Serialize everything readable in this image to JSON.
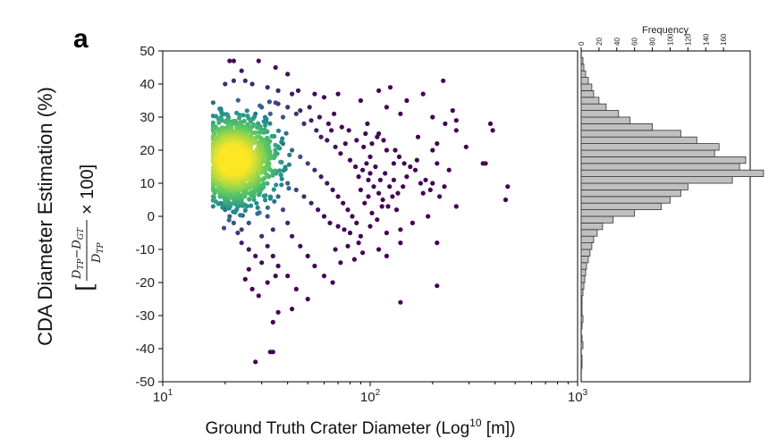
{
  "panel_label": "a",
  "chart_data": [
    {
      "type": "scatter",
      "title": "",
      "xlabel": "Ground Truth Crater Diameter (Log",
      "xlabel_sup": "10",
      "xlabel_tail": " [m])",
      "ylabel": "CDA Diameter Estimation (%)",
      "ylabel_formula": {
        "open": "[",
        "num": "D",
        "num_sub1": "TP",
        "num_minus": "−D",
        "num_sub2": "GT",
        "den": "D",
        "den_sub": "TP",
        "times": "× 100]"
      },
      "x_scale": "log",
      "xlim": [
        10,
        1000
      ],
      "ylim": [
        -50,
        50
      ],
      "x_ticks": [
        {
          "base": "10",
          "exp": "1",
          "value": 10
        },
        {
          "base": "10",
          "exp": "2",
          "value": 100
        },
        {
          "base": "10",
          "exp": "3",
          "value": 1000
        }
      ],
      "y_ticks": [
        50,
        40,
        30,
        20,
        10,
        0,
        -10,
        -20,
        -30,
        -40,
        -50
      ],
      "colormap": [
        "#440154",
        "#3b528b",
        "#21918c",
        "#5ec962",
        "#fde725"
      ],
      "density_center": {
        "x": 22,
        "y": 17
      },
      "points": [
        [
          21,
          47
        ],
        [
          22,
          47
        ],
        [
          29,
          47
        ],
        [
          35,
          45
        ],
        [
          24,
          44
        ],
        [
          40,
          43
        ],
        [
          22,
          41
        ],
        [
          25,
          41
        ],
        [
          27,
          40
        ],
        [
          20,
          40
        ],
        [
          32,
          39
        ],
        [
          36,
          38
        ],
        [
          42,
          37
        ],
        [
          45,
          38
        ],
        [
          54,
          37
        ],
        [
          60,
          36
        ],
        [
          70,
          37
        ],
        [
          90,
          35
        ],
        [
          110,
          38
        ],
        [
          125,
          39
        ],
        [
          150,
          35
        ],
        [
          180,
          37
        ],
        [
          225,
          41
        ],
        [
          120,
          33
        ],
        [
          140,
          31
        ],
        [
          200,
          30
        ],
        [
          250,
          32
        ],
        [
          260,
          29
        ],
        [
          230,
          28
        ],
        [
          380,
          28
        ],
        [
          390,
          26
        ],
        [
          260,
          26
        ],
        [
          290,
          21
        ],
        [
          200,
          20
        ],
        [
          210,
          22
        ],
        [
          170,
          24
        ],
        [
          110,
          25
        ],
        [
          95,
          25
        ],
        [
          100,
          18
        ],
        [
          120,
          20
        ],
        [
          130,
          16
        ],
        [
          150,
          12
        ],
        [
          165,
          14
        ],
        [
          175,
          10
        ],
        [
          180,
          7
        ],
        [
          200,
          10
        ],
        [
          210,
          16
        ],
        [
          240,
          14
        ],
        [
          350,
          16
        ],
        [
          360,
          16
        ],
        [
          460,
          9
        ],
        [
          450,
          5
        ],
        [
          260,
          3
        ],
        [
          190,
          0
        ],
        [
          160,
          -2
        ],
        [
          140,
          -4
        ],
        [
          120,
          -5
        ],
        [
          100,
          -3
        ],
        [
          90,
          -6
        ],
        [
          80,
          -5
        ],
        [
          75,
          -4
        ],
        [
          70,
          -3
        ],
        [
          110,
          -10
        ],
        [
          120,
          -12
        ],
        [
          140,
          -8
        ],
        [
          210,
          -8
        ],
        [
          210,
          -21
        ],
        [
          140,
          -26
        ],
        [
          50,
          -25
        ],
        [
          44,
          -22
        ],
        [
          40,
          -18
        ],
        [
          35,
          -18
        ],
        [
          32,
          -20
        ],
        [
          30,
          -14
        ],
        [
          28,
          -12
        ],
        [
          26,
          -10
        ],
        [
          24,
          -8
        ],
        [
          23,
          -5
        ],
        [
          22,
          -2
        ],
        [
          21,
          0
        ],
        [
          20,
          2
        ],
        [
          19,
          4
        ],
        [
          29,
          -24
        ],
        [
          36,
          -29
        ],
        [
          34,
          -32
        ],
        [
          42,
          -28
        ],
        [
          28,
          -44
        ],
        [
          33,
          -41
        ],
        [
          34,
          -41
        ],
        [
          28,
          31
        ],
        [
          30,
          33
        ],
        [
          33,
          31
        ],
        [
          38,
          30
        ],
        [
          44,
          31
        ],
        [
          48,
          28
        ],
        [
          52,
          29
        ],
        [
          55,
          26
        ],
        [
          58,
          24
        ],
        [
          62,
          23
        ],
        [
          65,
          26
        ],
        [
          68,
          21
        ],
        [
          72,
          19
        ],
        [
          76,
          22
        ],
        [
          80,
          17
        ],
        [
          85,
          15
        ],
        [
          88,
          12
        ],
        [
          92,
          14
        ],
        [
          98,
          11
        ],
        [
          104,
          9
        ],
        [
          110,
          7
        ],
        [
          115,
          5
        ],
        [
          122,
          3
        ],
        [
          128,
          6
        ],
        [
          134,
          2
        ],
        [
          38,
          22
        ],
        [
          42,
          20
        ],
        [
          46,
          18
        ],
        [
          50,
          16
        ],
        [
          54,
          14
        ],
        [
          58,
          12
        ],
        [
          62,
          10
        ],
        [
          66,
          8
        ],
        [
          70,
          6
        ],
        [
          74,
          4
        ],
        [
          78,
          2
        ],
        [
          82,
          0
        ],
        [
          86,
          -2
        ],
        [
          40,
          10
        ],
        [
          44,
          8
        ],
        [
          48,
          6
        ],
        [
          52,
          4
        ],
        [
          56,
          2
        ],
        [
          60,
          0
        ],
        [
          64,
          -2
        ],
        [
          36,
          6
        ],
        [
          38,
          2
        ],
        [
          40,
          -2
        ],
        [
          42,
          -6
        ],
        [
          46,
          -9
        ],
        [
          50,
          -12
        ],
        [
          54,
          -15
        ],
        [
          60,
          -18
        ],
        [
          66,
          -20
        ],
        [
          30,
          -6
        ],
        [
          32,
          -9
        ],
        [
          34,
          -12
        ],
        [
          36,
          -15
        ],
        [
          26,
          -16
        ],
        [
          25,
          -19
        ],
        [
          27,
          -22
        ],
        [
          24,
          -4
        ],
        [
          26,
          -2
        ],
        [
          32,
          0
        ],
        [
          34,
          -4
        ],
        [
          36,
          34
        ],
        [
          40,
          33
        ],
        [
          46,
          32
        ],
        [
          51,
          33
        ],
        [
          57,
          30
        ],
        [
          63,
          28
        ],
        [
          67,
          31
        ],
        [
          73,
          27
        ],
        [
          79,
          26
        ],
        [
          86,
          23
        ],
        [
          93,
          21
        ],
        [
          97,
          28
        ],
        [
          102,
          22
        ],
        [
          108,
          24
        ],
        [
          116,
          23
        ],
        [
          132,
          20
        ],
        [
          138,
          18
        ],
        [
          146,
          16
        ],
        [
          156,
          15
        ],
        [
          168,
          17
        ],
        [
          185,
          11
        ],
        [
          195,
          8
        ],
        [
          216,
          6
        ],
        [
          228,
          9
        ],
        [
          96,
          16
        ],
        [
          100,
          13
        ],
        [
          106,
          15
        ],
        [
          112,
          11
        ],
        [
          118,
          13
        ],
        [
          124,
          9
        ],
        [
          130,
          11
        ],
        [
          136,
          7
        ],
        [
          144,
          9
        ],
        [
          90,
          8
        ],
        [
          94,
          4
        ],
        [
          98,
          6
        ],
        [
          102,
          1
        ],
        [
          108,
          -1
        ],
        [
          114,
          3
        ],
        [
          88,
          -8
        ],
        [
          92,
          -11
        ],
        [
          84,
          -13
        ],
        [
          78,
          -9
        ],
        [
          72,
          -14
        ],
        [
          68,
          -10
        ]
      ]
    },
    {
      "type": "bar",
      "orientation": "horizontal",
      "title": "",
      "xlabel": "Frequency",
      "xlim": [
        0,
        190
      ],
      "x_ticks": [
        0,
        20,
        40,
        60,
        80,
        100,
        120,
        140,
        160
      ],
      "ylim": [
        -50,
        50
      ],
      "bin_width": 2,
      "bin_edges": [
        -48,
        -46,
        -44,
        -42,
        -40,
        -38,
        -36,
        -34,
        -32,
        -30,
        -28,
        -26,
        -24,
        -22,
        -20,
        -18,
        -16,
        -14,
        -12,
        -10,
        -8,
        -6,
        -4,
        -2,
        0,
        2,
        4,
        6,
        8,
        10,
        12,
        14,
        16,
        18,
        20,
        22,
        24,
        26,
        28,
        30,
        32,
        34,
        36,
        38,
        40,
        42,
        44,
        46,
        48
      ],
      "counts": [
        0,
        1,
        1,
        0,
        2,
        1,
        0,
        1,
        2,
        1,
        1,
        1,
        2,
        3,
        4,
        5,
        6,
        8,
        10,
        12,
        14,
        18,
        24,
        36,
        60,
        90,
        100,
        112,
        120,
        170,
        205,
        178,
        185,
        150,
        155,
        130,
        112,
        80,
        55,
        42,
        28,
        20,
        14,
        12,
        8,
        5,
        3,
        2
      ],
      "bar_color": "#c0c0c0",
      "edge_color": "#333333"
    }
  ]
}
